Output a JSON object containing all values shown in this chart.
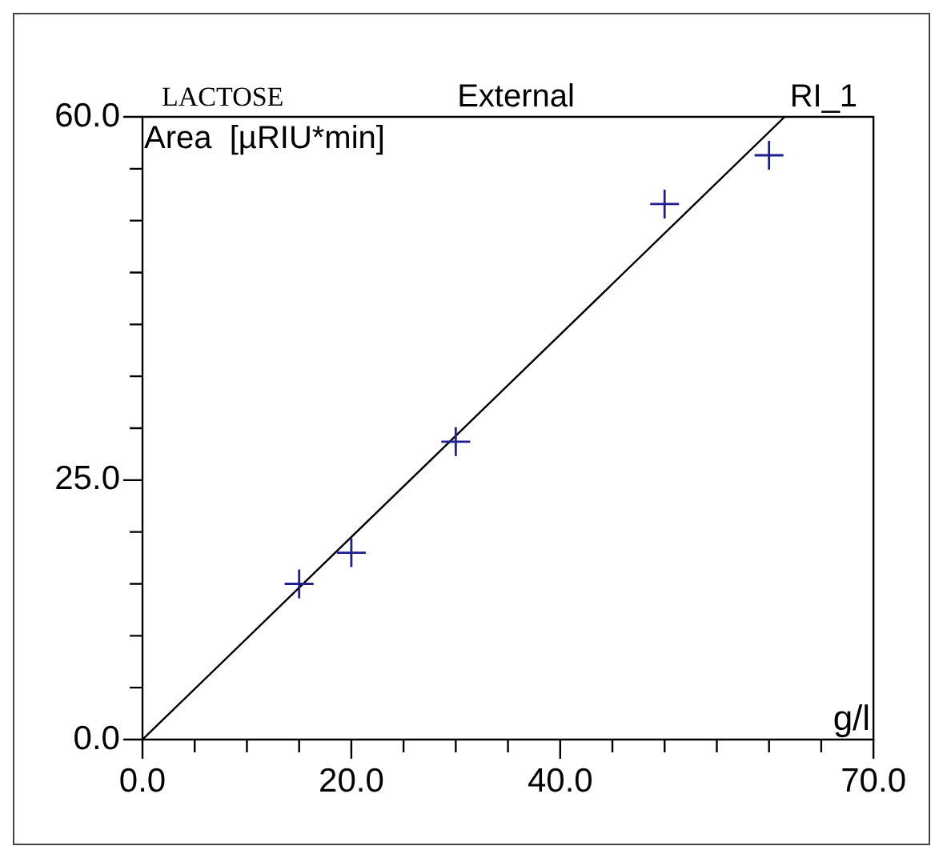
{
  "chart_data": {
    "type": "scatter",
    "title": "External",
    "annotations": [
      "LACTOSE",
      "RI_1"
    ],
    "xlabel": "g/l",
    "ylabel": "Area  [µRIU*min]",
    "x": [
      15,
      20,
      30,
      50,
      60
    ],
    "series": [
      {
        "color": "#1f1f8f",
        "values": [
          15,
          18,
          28.7,
          51.6,
          56.3
        ],
        "marker": "cross"
      },
      {
        "type": "line",
        "color": "#000000",
        "x": [
          0,
          61.5
        ],
        "values": [
          0,
          60
        ],
        "marker": "none",
        "line_style": "solid"
      }
    ],
    "xlim": [
      0,
      70
    ],
    "ylim": [
      0,
      60
    ],
    "xticks": [
      {
        "value": 0,
        "label": "0.0"
      },
      {
        "value": 5,
        "label": null
      },
      {
        "value": 10,
        "label": null
      },
      {
        "value": 15,
        "label": null
      },
      {
        "value": 20,
        "label": "20.0"
      },
      {
        "value": 25,
        "label": null
      },
      {
        "value": 30,
        "label": null
      },
      {
        "value": 35,
        "label": null
      },
      {
        "value": 40,
        "label": "40.0"
      },
      {
        "value": 45,
        "label": null
      },
      {
        "value": 50,
        "label": null
      },
      {
        "value": 55,
        "label": null
      },
      {
        "value": 60,
        "label": null
      },
      {
        "value": 65,
        "label": null
      },
      {
        "value": 70,
        "label": "70.0"
      }
    ],
    "yticks": [
      {
        "value": 0,
        "label": "0.0"
      },
      {
        "value": 5,
        "label": null
      },
      {
        "value": 10,
        "label": null
      },
      {
        "value": 15,
        "label": null
      },
      {
        "value": 20,
        "label": null
      },
      {
        "value": 25,
        "label": "25.0"
      },
      {
        "value": 30,
        "label": null
      },
      {
        "value": 35,
        "label": null
      },
      {
        "value": 40,
        "label": null
      },
      {
        "value": 45,
        "label": null
      },
      {
        "value": 50,
        "label": null
      },
      {
        "value": 55,
        "label": null
      },
      {
        "value": 60,
        "label": "60.0"
      }
    ],
    "grid": false,
    "legend": false
  }
}
